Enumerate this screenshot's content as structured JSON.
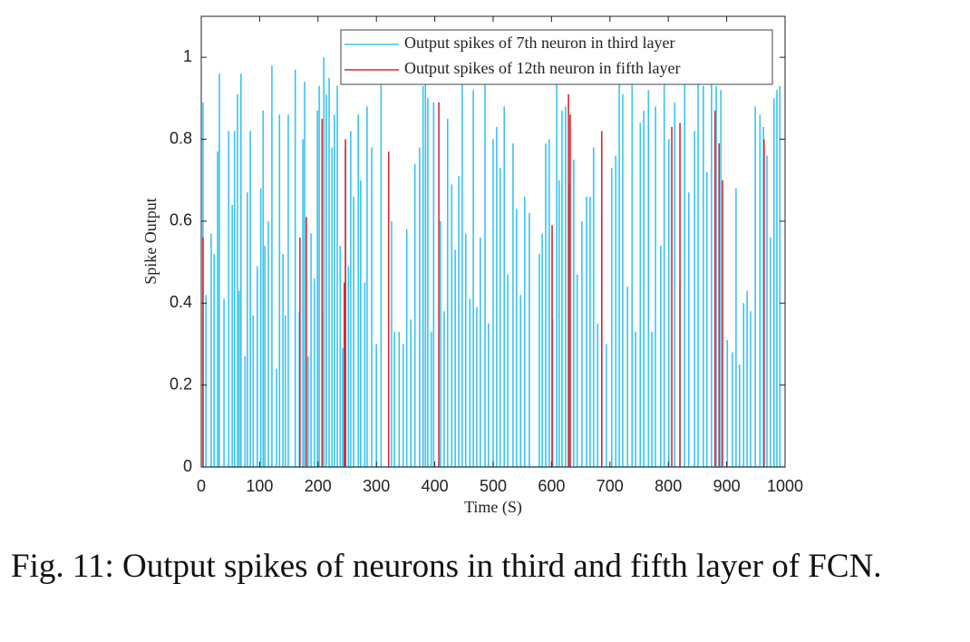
{
  "chart_data": {
    "type": "stem",
    "xlabel": "Time (S)",
    "ylabel": "Spike Output",
    "xlim": [
      0,
      1000
    ],
    "xticks": [
      0,
      100,
      200,
      300,
      400,
      500,
      600,
      700,
      800,
      900,
      1000
    ],
    "ylim": [
      0,
      1.1
    ],
    "yticks": [
      0,
      0.2,
      0.4,
      0.6,
      0.8,
      1
    ],
    "legend": "upper right",
    "series": [
      {
        "name": "Output spikes of 7th neuron in third layer",
        "color": "#3cc3ee",
        "x": [
          3,
          8,
          17,
          22,
          28,
          31,
          39,
          47,
          53,
          57,
          62,
          65,
          68,
          75,
          79,
          84,
          89,
          96,
          102,
          106,
          109,
          115,
          121,
          129,
          134,
          140,
          144,
          149,
          161,
          168,
          174,
          177,
          183,
          188,
          194,
          199,
          202,
          207,
          210,
          214,
          219,
          224,
          228,
          233,
          238,
          242,
          247,
          252,
          256,
          261,
          269,
          273,
          280,
          284,
          292,
          300,
          308,
          326,
          331,
          339,
          346,
          352,
          359,
          366,
          374,
          380,
          384,
          388,
          394,
          398,
          410,
          416,
          422,
          429,
          435,
          441,
          447,
          453,
          460,
          466,
          472,
          478,
          486,
          492,
          500,
          506,
          512,
          519,
          525,
          534,
          540,
          547,
          554,
          562,
          579,
          584,
          590,
          596,
          602,
          609,
          613,
          618,
          624,
          630,
          638,
          644,
          652,
          660,
          666,
          672,
          679,
          686,
          694,
          703,
          710,
          716,
          722,
          730,
          738,
          744,
          752,
          758,
          766,
          772,
          778,
          787,
          793,
          801,
          811,
          820,
          828,
          835,
          845,
          851,
          860,
          866,
          874,
          882,
          890,
          901,
          910,
          916,
          922,
          929,
          935,
          941,
          949,
          957,
          963,
          969,
          975,
          981,
          986,
          991
        ],
        "values": [
          0.89,
          0.42,
          0.57,
          0.52,
          0.77,
          0.96,
          0.41,
          0.82,
          0.64,
          0.82,
          0.91,
          0.43,
          0.96,
          0.27,
          0.67,
          0.82,
          0.37,
          0.49,
          0.68,
          0.87,
          0.54,
          0.6,
          0.98,
          0.24,
          0.86,
          0.52,
          0.37,
          0.86,
          0.97,
          0.38,
          0.8,
          0.94,
          0.27,
          0.57,
          0.46,
          0.87,
          0.93,
          0.38,
          1.0,
          0.91,
          0.95,
          0.78,
          0.86,
          0.93,
          0.54,
          0.29,
          0.78,
          0.49,
          0.82,
          0.66,
          0.86,
          0.7,
          0.45,
          0.88,
          0.78,
          0.3,
          0.94,
          0.6,
          0.33,
          0.33,
          0.3,
          0.58,
          0.36,
          0.74,
          0.78,
          0.93,
          0.97,
          0.9,
          0.33,
          0.89,
          0.6,
          0.38,
          0.85,
          0.69,
          0.53,
          0.71,
          0.94,
          0.57,
          0.41,
          0.92,
          0.39,
          0.56,
          0.94,
          0.35,
          0.8,
          0.83,
          0.73,
          0.88,
          0.47,
          0.79,
          0.63,
          0.42,
          0.66,
          0.62,
          0.52,
          0.57,
          0.79,
          0.8,
          0.36,
          0.94,
          0.7,
          0.87,
          0.88,
          0.69,
          0.75,
          0.47,
          0.6,
          0.66,
          0.66,
          0.78,
          0.35,
          0.62,
          0.3,
          0.73,
          0.76,
          0.94,
          0.91,
          0.44,
          0.94,
          0.33,
          0.84,
          0.87,
          0.92,
          0.33,
          0.88,
          0.54,
          0.94,
          0.8,
          0.89,
          0.45,
          0.94,
          0.67,
          0.82,
          0.94,
          0.93,
          0.72,
          0.94,
          0.93,
          0.92,
          0.31,
          0.28,
          0.68,
          0.25,
          0.4,
          0.43,
          0.38,
          0.88,
          0.86,
          0.83,
          0.76,
          0.56,
          0.9,
          0.92,
          0.93
        ]
      },
      {
        "name": "Output spikes of 12th neuron in fifth layer",
        "color": "#d42a35",
        "x": [
          3,
          169,
          180,
          207,
          245,
          247,
          321,
          407,
          601,
          629,
          632,
          686,
          806,
          820,
          880,
          887,
          893,
          964
        ],
        "values": [
          0.56,
          0.56,
          0.61,
          0.85,
          0.45,
          0.8,
          0.77,
          0.89,
          0.59,
          0.91,
          0.86,
          0.82,
          0.83,
          0.84,
          0.87,
          0.79,
          0.7,
          0.8
        ]
      }
    ]
  },
  "caption": "Fig. 11: Output spikes of neurons in third and fifth layer of FCN."
}
